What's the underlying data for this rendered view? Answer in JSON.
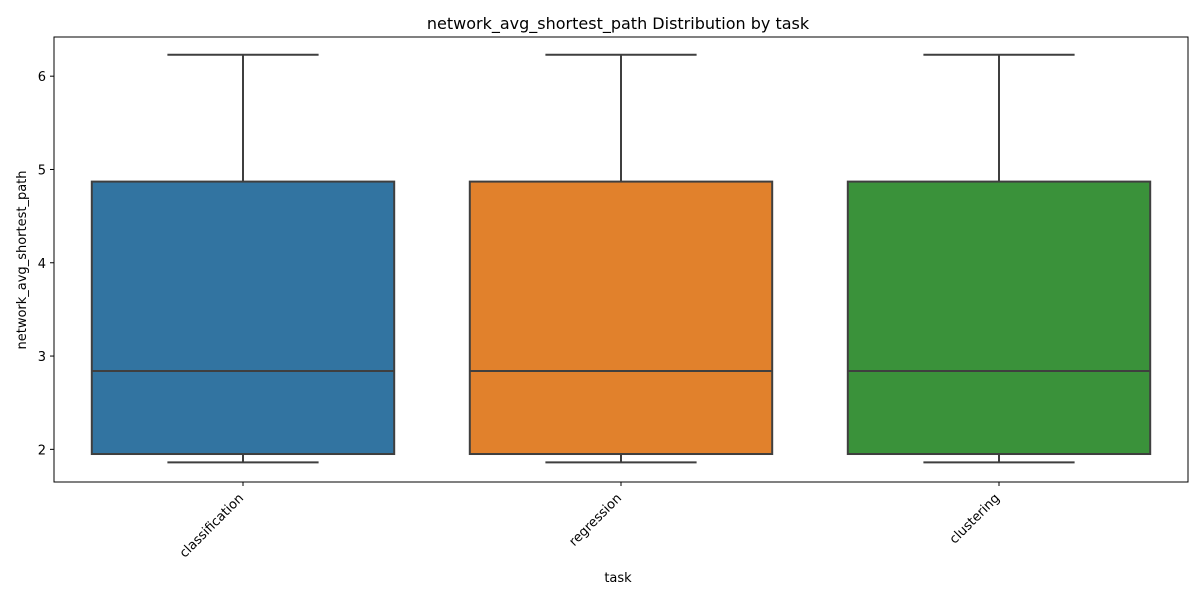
{
  "chart_data": {
    "type": "box",
    "title": "network_avg_shortest_path Distribution by task",
    "xlabel": "task",
    "ylabel": "network_avg_shortest_path",
    "categories": [
      "classification",
      "regression",
      "clustering"
    ],
    "ylim": [
      1.65,
      6.42
    ],
    "yticks": [
      2,
      3,
      4,
      5,
      6
    ],
    "grid": false,
    "boxes": [
      {
        "category": "classification",
        "whisker_low": 1.86,
        "q1": 1.95,
        "median": 2.84,
        "q3": 4.87,
        "whisker_high": 6.23,
        "color": "#3274a1"
      },
      {
        "category": "regression",
        "whisker_low": 1.86,
        "q1": 1.95,
        "median": 2.84,
        "q3": 4.87,
        "whisker_high": 6.23,
        "color": "#e1812c"
      },
      {
        "category": "clustering",
        "whisker_low": 1.86,
        "q1": 1.95,
        "median": 2.84,
        "q3": 4.87,
        "whisker_high": 6.23,
        "color": "#3a923a"
      }
    ]
  }
}
